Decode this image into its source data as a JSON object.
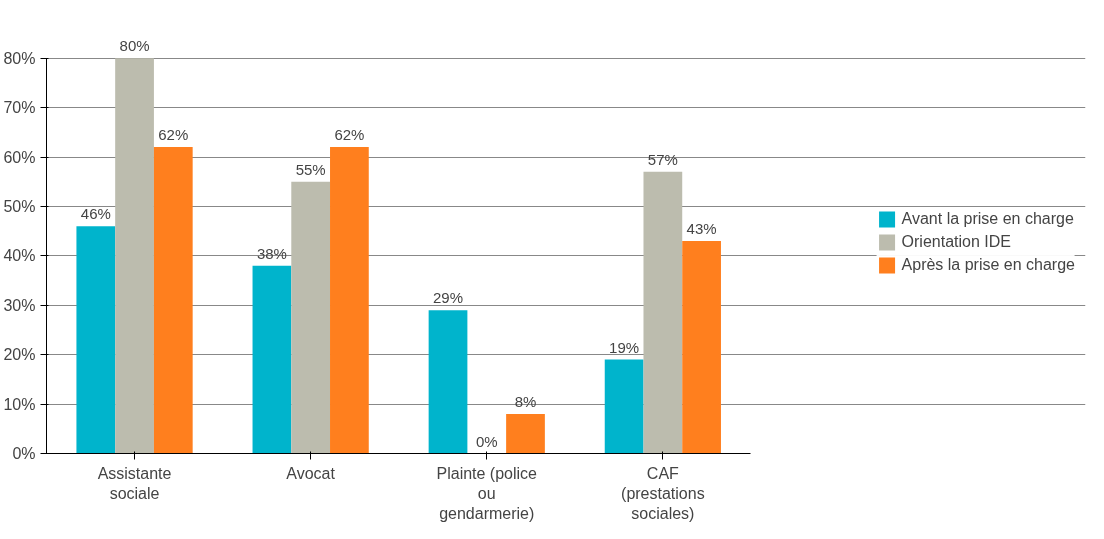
{
  "chart_data": {
    "type": "bar",
    "categories": [
      "Assistante\nsociale",
      "Avocat",
      "Plainte (police\nou\ngendarmerie)",
      "CAF\n(prestations\nsociales)"
    ],
    "series": [
      {
        "name": "Avant la prise en charge",
        "color": "#00b4cc",
        "values": [
          46,
          38,
          29,
          19
        ],
        "value_labels": [
          "46%",
          "38%",
          "29%",
          "19%"
        ]
      },
      {
        "name": "Orientation IDE",
        "color": "#bcbcae",
        "values": [
          80,
          55,
          0,
          57
        ],
        "value_labels": [
          "80%",
          "55%",
          "0%",
          "57%"
        ]
      },
      {
        "name": "Après la prise en charge",
        "color": "#ff7f1e",
        "values": [
          62,
          62,
          8,
          43
        ],
        "value_labels": [
          "62%",
          "62%",
          "8%",
          "43%"
        ]
      }
    ],
    "ylim": [
      0,
      80
    ],
    "yticks": [
      {
        "value": 0,
        "label": "0%"
      },
      {
        "value": 10,
        "label": "10%"
      },
      {
        "value": 20,
        "label": "20%"
      },
      {
        "value": 30,
        "label": "30%"
      },
      {
        "value": 40,
        "label": "40%"
      },
      {
        "value": 50,
        "label": "50%"
      },
      {
        "value": 60,
        "label": "60%"
      },
      {
        "value": 70,
        "label": "70%"
      },
      {
        "value": 80,
        "label": "80%"
      }
    ],
    "grid": "y",
    "legend": "right"
  }
}
